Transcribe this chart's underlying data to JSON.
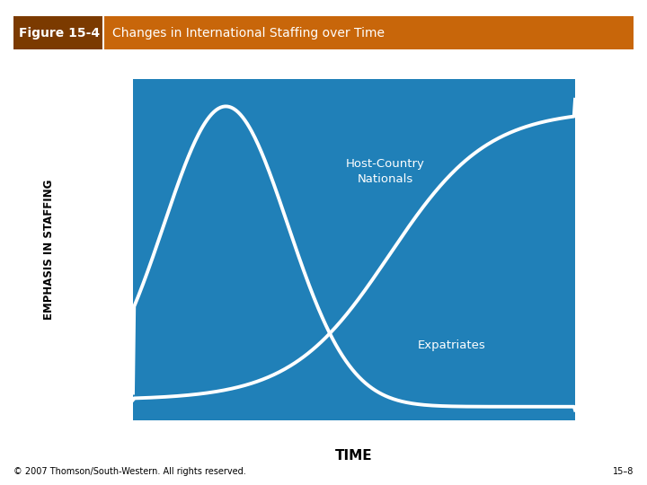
{
  "title_label": "Figure 15-4",
  "title_text": "Changes in International Staffing over Time",
  "header_bg_color": "#C8660A",
  "header_text_color": "#FFFFFF",
  "header_label_bg": "#7B3A00",
  "plot_bg_color": "#2080B8",
  "line_color": "#FFFFFF",
  "ylabel": "EMPHASIS IN STAFFING",
  "xlabel": "TIME",
  "label_host": "Host-Country\nNationals",
  "label_expat": "Expatriates",
  "footer_left": "© 2007 Thomson/South-Western. All rights reserved.",
  "footer_right": "15–8",
  "fig_bg_color": "#FFFFFF",
  "line_width": 2.8
}
